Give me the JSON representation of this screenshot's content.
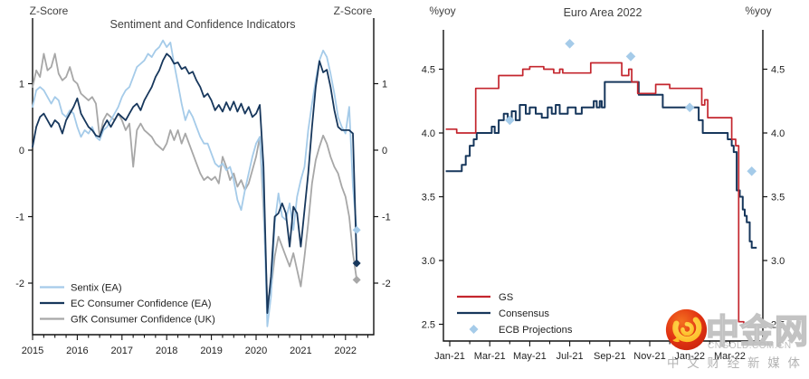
{
  "watermark": {
    "brand": "中金网",
    "domain": "CNGOLD.COM.CN",
    "tagline": "中 文 财 经 新 媒 体",
    "logo_circle_color": "#e23413",
    "logo_swirl_color": "#ffce35"
  },
  "chart_data": [
    {
      "type": "line",
      "title": "Sentiment and Confidence Indicators",
      "axis_label_left": "Z-Score",
      "axis_label_right": "Z-Score",
      "x_start": "2015-01",
      "x_end": "2022-04",
      "x_tick_labels": [
        "2015",
        "2016",
        "2017",
        "2018",
        "2019",
        "2020",
        "2021",
        "2022"
      ],
      "y_tick_values": [
        1,
        0,
        -1,
        -2
      ],
      "y_tick_labels": [
        "1",
        "0",
        "-1",
        "-2"
      ],
      "ylim": [
        -2.78,
        1.99
      ],
      "grid": false,
      "legend_position": "bottom-left-inside",
      "end_marker": "diamond",
      "series": [
        {
          "name": "Sentix (EA)",
          "color": "#a5cbe9",
          "values": [
            0.65,
            0.9,
            0.95,
            0.9,
            0.8,
            0.7,
            0.8,
            0.75,
            0.55,
            0.5,
            0.6,
            0.55,
            0.35,
            0.2,
            0.3,
            0.25,
            0.35,
            0.2,
            0.15,
            0.3,
            0.35,
            0.45,
            0.55,
            0.65,
            0.8,
            0.9,
            0.95,
            1.1,
            1.25,
            1.3,
            1.35,
            1.45,
            1.4,
            1.5,
            1.55,
            1.65,
            1.55,
            1.62,
            1.3,
            1.0,
            0.7,
            0.45,
            0.6,
            0.5,
            0.35,
            0.2,
            0.1,
            0.1,
            -0.05,
            -0.2,
            -0.25,
            -0.2,
            -0.3,
            -0.25,
            -0.45,
            -0.75,
            -0.9,
            -0.6,
            -0.35,
            -0.1,
            0.1,
            0.2,
            -0.7,
            -2.65,
            -2.2,
            -1.1,
            -0.65,
            -1.0,
            -1.05,
            -0.8,
            -1.2,
            -0.7,
            -0.45,
            -0.25,
            0.3,
            0.7,
            1.05,
            1.35,
            1.5,
            1.4,
            1.15,
            0.85,
            0.5,
            0.35,
            0.25,
            0.65,
            -0.55,
            -1.2
          ]
        },
        {
          "name": "EC Consumer Confidence (EA)",
          "color": "#17375c",
          "values": [
            0.05,
            0.35,
            0.5,
            0.55,
            0.45,
            0.35,
            0.45,
            0.4,
            0.25,
            0.45,
            0.55,
            0.65,
            0.78,
            0.55,
            0.45,
            0.35,
            0.3,
            0.22,
            0.2,
            0.35,
            0.45,
            0.35,
            0.45,
            0.55,
            0.5,
            0.45,
            0.55,
            0.65,
            0.7,
            0.6,
            0.75,
            0.85,
            0.95,
            1.1,
            1.2,
            1.35,
            1.45,
            1.4,
            1.3,
            1.32,
            1.22,
            1.25,
            1.15,
            1.18,
            1.05,
            0.95,
            0.8,
            0.85,
            0.75,
            0.6,
            0.68,
            0.58,
            0.72,
            0.6,
            0.73,
            0.58,
            0.7,
            0.55,
            0.65,
            0.5,
            0.55,
            0.68,
            -0.25,
            -2.45,
            -1.9,
            -1.0,
            -0.95,
            -0.8,
            -0.95,
            -1.45,
            -0.85,
            -0.95,
            -1.45,
            -0.9,
            -0.35,
            0.35,
            0.95,
            1.34,
            1.17,
            1.21,
            0.95,
            0.6,
            0.35,
            0.3,
            0.3,
            0.3,
            0.25,
            -1.7
          ]
        },
        {
          "name": "GfK Consumer Confidence (UK)",
          "color": "#a7a7a7",
          "values": [
            0.95,
            1.2,
            1.1,
            1.45,
            1.2,
            1.25,
            1.45,
            1.15,
            1.05,
            1.1,
            1.25,
            1.05,
            1.0,
            0.85,
            0.8,
            0.75,
            0.8,
            0.7,
            0.2,
            0.45,
            0.55,
            0.5,
            0.45,
            0.55,
            0.45,
            0.3,
            0.4,
            -0.25,
            0.3,
            0.4,
            0.3,
            0.25,
            0.2,
            0.1,
            0.05,
            0.0,
            0.1,
            0.3,
            0.15,
            0.3,
            0.1,
            0.25,
            0.1,
            -0.05,
            -0.2,
            -0.35,
            -0.45,
            -0.4,
            -0.45,
            -0.4,
            -0.5,
            -0.1,
            -0.25,
            -0.45,
            -0.35,
            -0.55,
            -0.45,
            -0.6,
            -0.5,
            -0.3,
            -0.1,
            0.2,
            -0.9,
            -2.25,
            -2.1,
            -1.6,
            -1.3,
            -1.45,
            -1.6,
            -1.75,
            -1.55,
            -1.8,
            -2.05,
            -1.6,
            -1.1,
            -0.5,
            -0.15,
            0.05,
            0.22,
            0.1,
            -0.1,
            -0.25,
            -0.35,
            -0.55,
            -0.7,
            -1.0,
            -1.55,
            -1.95
          ]
        }
      ]
    },
    {
      "type": "step-line",
      "title": "Euro Area 2022",
      "axis_label_left": "%yoy",
      "axis_label_right": "%yoy",
      "x_tick_labels": [
        "Jan-21",
        "Mar-21",
        "May-21",
        "Jul-21",
        "Sep-21",
        "Nov-21",
        "Jan-22",
        "Mar-22"
      ],
      "y_tick_values": [
        4.5,
        4.0,
        3.5,
        3.0,
        2.5
      ],
      "y_tick_labels": [
        "4.5",
        "4.0",
        "3.5",
        "3.0",
        "2.5"
      ],
      "ylim": [
        2.35,
        4.81
      ],
      "xlim_months_from_jan21": [
        -0.3,
        15.65
      ],
      "grid": false,
      "legend_position": "bottom-left-inside",
      "series": [
        {
          "name": "GS",
          "color": "#c4262e",
          "steps": [
            [
              -0.2,
              4.03
            ],
            [
              0.35,
              4.0
            ],
            [
              1.3,
              4.35
            ],
            [
              2.45,
              4.45
            ],
            [
              3.65,
              4.5
            ],
            [
              4.0,
              4.52
            ],
            [
              4.7,
              4.5
            ],
            [
              5.2,
              4.47
            ],
            [
              5.5,
              4.5
            ],
            [
              5.65,
              4.47
            ],
            [
              7.05,
              4.55
            ],
            [
              8.6,
              4.45
            ],
            [
              8.95,
              4.5
            ],
            [
              9.1,
              4.4
            ],
            [
              9.4,
              4.31
            ],
            [
              10.3,
              4.38
            ],
            [
              11.0,
              4.35
            ],
            [
              12.6,
              4.22
            ],
            [
              12.75,
              4.26
            ],
            [
              12.9,
              4.12
            ],
            [
              14.1,
              3.95
            ],
            [
              14.3,
              3.9
            ],
            [
              14.45,
              2.52
            ],
            [
              14.7,
              2.48
            ],
            [
              15.1,
              2.48
            ]
          ]
        },
        {
          "name": "Consensus",
          "color": "#17375c",
          "steps": [
            [
              -0.2,
              3.7
            ],
            [
              0.6,
              3.75
            ],
            [
              0.8,
              3.82
            ],
            [
              1.0,
              3.9
            ],
            [
              1.2,
              3.95
            ],
            [
              1.35,
              4.0
            ],
            [
              2.1,
              4.05
            ],
            [
              2.25,
              4.0
            ],
            [
              2.45,
              4.1
            ],
            [
              2.7,
              4.15
            ],
            [
              2.9,
              4.1
            ],
            [
              3.1,
              4.17
            ],
            [
              3.3,
              4.1
            ],
            [
              3.5,
              4.22
            ],
            [
              3.8,
              4.15
            ],
            [
              4.0,
              4.2
            ],
            [
              4.3,
              4.15
            ],
            [
              4.6,
              4.12
            ],
            [
              4.9,
              4.2
            ],
            [
              5.1,
              4.15
            ],
            [
              5.3,
              4.22
            ],
            [
              5.5,
              4.15
            ],
            [
              5.9,
              4.2
            ],
            [
              6.3,
              4.15
            ],
            [
              6.6,
              4.2
            ],
            [
              7.2,
              4.25
            ],
            [
              7.35,
              4.2
            ],
            [
              7.5,
              4.25
            ],
            [
              7.6,
              4.2
            ],
            [
              7.75,
              4.4
            ],
            [
              9.45,
              4.3
            ],
            [
              10.65,
              4.2
            ],
            [
              12.45,
              4.1
            ],
            [
              12.65,
              4.0
            ],
            [
              13.9,
              3.95
            ],
            [
              14.1,
              3.9
            ],
            [
              14.2,
              3.85
            ],
            [
              14.35,
              3.55
            ],
            [
              14.5,
              3.5
            ],
            [
              14.65,
              3.4
            ],
            [
              14.75,
              3.35
            ],
            [
              14.85,
              3.3
            ],
            [
              15.0,
              3.15
            ],
            [
              15.1,
              3.1
            ],
            [
              15.35,
              3.1
            ]
          ]
        }
      ],
      "projections": {
        "name": "ECB Projections",
        "color": "#a5cbe9",
        "marker": "diamond",
        "points": [
          [
            3.0,
            4.1
          ],
          [
            6.0,
            4.7
          ],
          [
            9.05,
            4.6
          ],
          [
            12.0,
            4.2
          ],
          [
            15.1,
            3.7
          ]
        ]
      }
    }
  ]
}
